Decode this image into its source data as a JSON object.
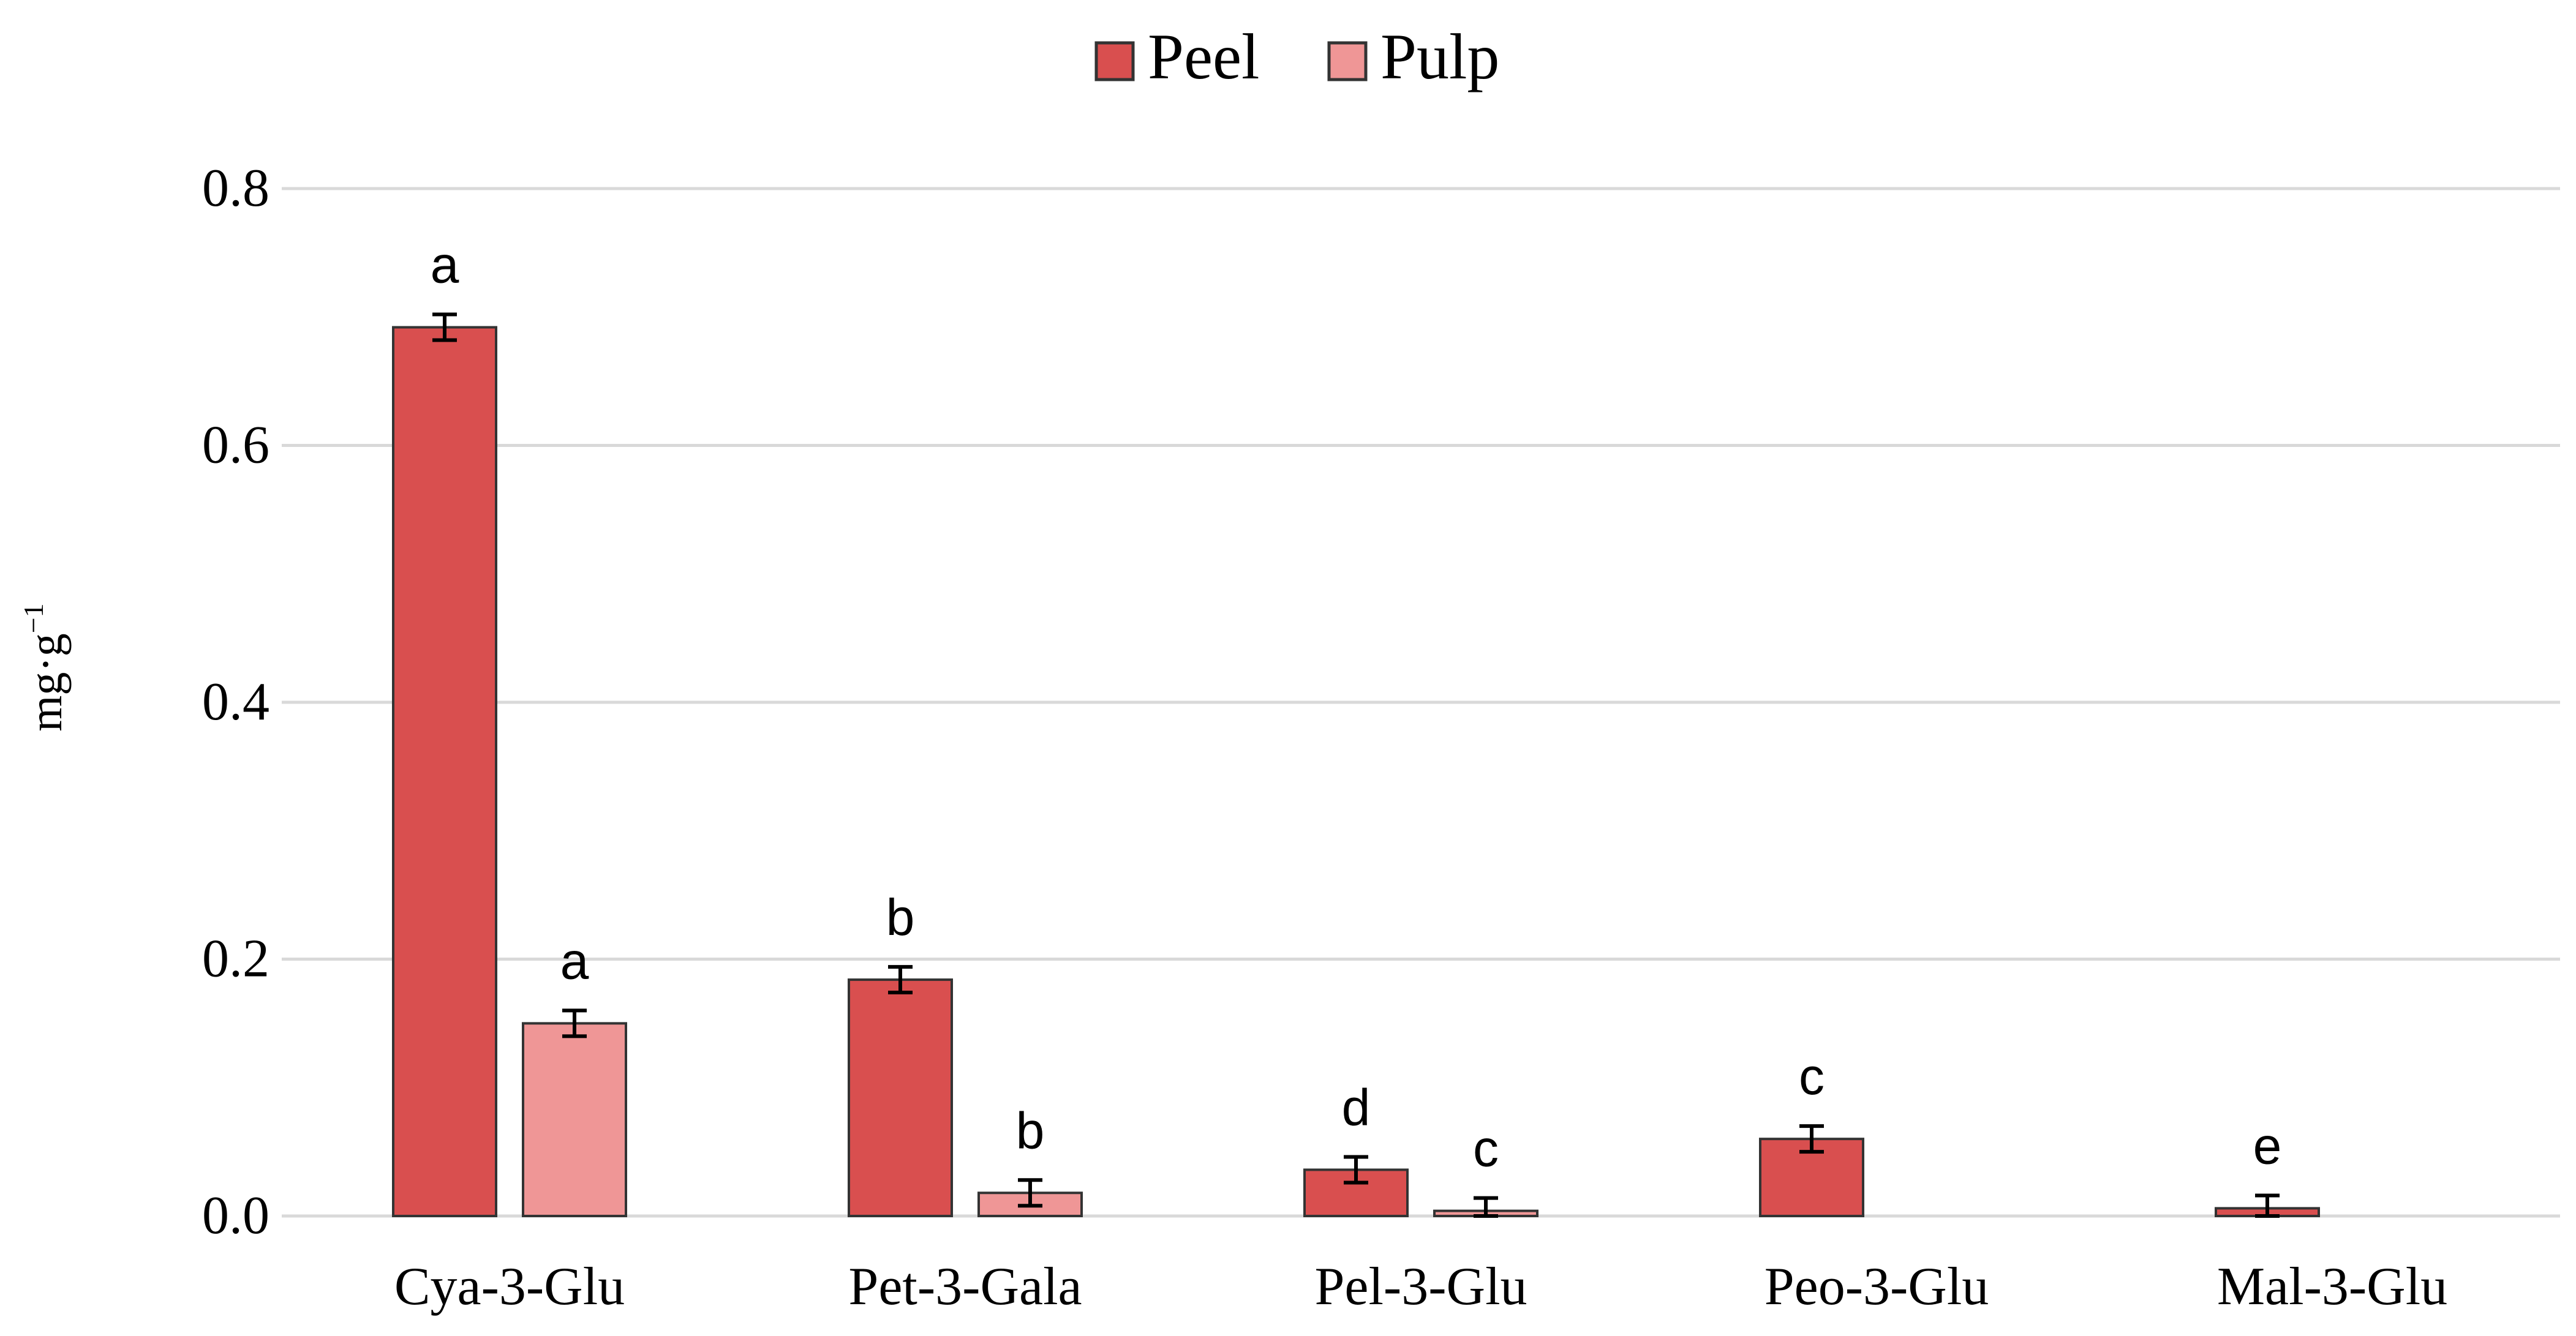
{
  "chart_data": {
    "type": "bar",
    "categories": [
      "Cya-3-Glu",
      "Pet-3-Gala",
      "Pel-3-Glu",
      "Peo-3-Glu",
      "Mal-3-Glu"
    ],
    "series": [
      {
        "name": "Peel",
        "color": "#D94F4F",
        "values": [
          0.692,
          0.184,
          0.036,
          0.06,
          0.006
        ],
        "errors": [
          0.01,
          0.01,
          0.01,
          0.01,
          0.01
        ],
        "significance": [
          "a",
          "b",
          "d",
          "c",
          "e"
        ]
      },
      {
        "name": "Pulp",
        "color": "#EF9696",
        "values": [
          0.15,
          0.018,
          0.004,
          null,
          null
        ],
        "errors": [
          0.01,
          0.01,
          0.01,
          null,
          null
        ],
        "significance": [
          "a",
          "b",
          "c",
          null,
          null
        ]
      }
    ],
    "ylabel": "mg·g",
    "ylabel_superscript": "−1",
    "ylim": [
      0,
      0.8
    ],
    "yticks": [
      "0.0",
      "0.2",
      "0.4",
      "0.6",
      "0.8"
    ],
    "ytick_values": [
      0,
      0.2,
      0.4,
      0.6,
      0.8
    ],
    "grid": true,
    "legend_position": "top-center",
    "bar_outline_color": "#333333",
    "grid_color": "#D9D9D9"
  }
}
